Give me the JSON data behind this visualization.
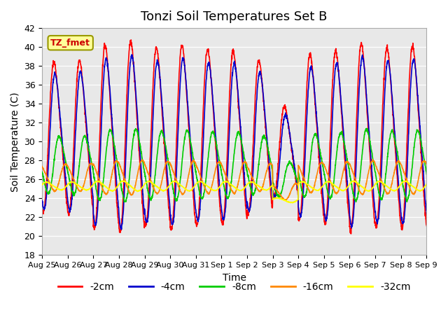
{
  "title": "Tonzi Soil Temperatures Set B",
  "xlabel": "Time",
  "ylabel": "Soil Temperature (C)",
  "ylim": [
    18,
    42
  ],
  "yticks": [
    18,
    20,
    22,
    24,
    26,
    28,
    30,
    32,
    34,
    36,
    38,
    40,
    42
  ],
  "x_labels": [
    "Aug 25",
    "Aug 26",
    "Aug 27",
    "Aug 28",
    "Aug 29",
    "Aug 30",
    "Aug 31",
    "Sep 1",
    "Sep 2",
    "Sep 3",
    "Sep 4",
    "Sep 5",
    "Sep 6",
    "Sep 7",
    "Sep 8",
    "Sep 9"
  ],
  "legend_labels": [
    "-2cm",
    "-4cm",
    "-8cm",
    "-16cm",
    "-32cm"
  ],
  "legend_colors": [
    "#ff0000",
    "#0000cc",
    "#00cc00",
    "#ff8800",
    "#ffff00"
  ],
  "bg_color": "#e8e8e8",
  "fig_color": "#ffffff",
  "annotation_text": "TZ_fmet",
  "annotation_bg": "#ffff99",
  "annotation_fg": "#cc0000",
  "n_days": 16,
  "samples_per_day": 144,
  "depth_means": [
    30.5,
    30.0,
    27.5,
    26.2,
    25.3
  ],
  "depth_amplitudes": [
    10.5,
    9.5,
    4.0,
    1.9,
    0.55
  ],
  "depth_lags": [
    0.0,
    0.04,
    0.2,
    0.45,
    0.7
  ],
  "day_peak_mod": [
    0.83,
    0.85,
    1.02,
    1.06,
    0.99,
    1.02,
    0.97,
    0.96,
    0.85,
    0.5,
    0.92,
    0.96,
    1.04,
    0.99,
    1.01,
    1.01
  ],
  "day_min_shift": [
    0.0,
    0.0,
    0.0,
    0.0,
    0.0,
    0.0,
    0.0,
    0.0,
    0.0,
    -1.5,
    0.0,
    0.0,
    0.0,
    0.0,
    0.0,
    0.0
  ]
}
